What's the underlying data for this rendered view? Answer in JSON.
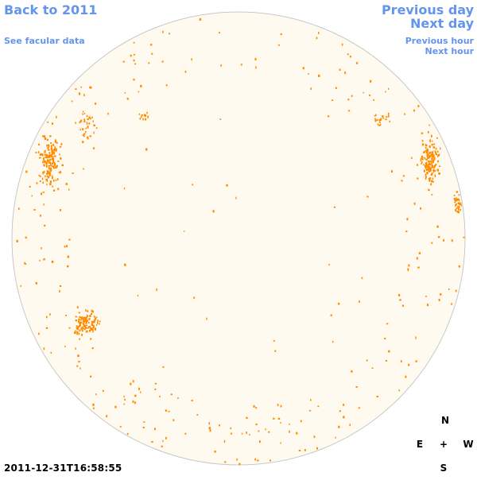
{
  "nav": {
    "back_label": "Back to 2011",
    "facular_label": "See facular data",
    "prev_day_label": "Previous day",
    "next_day_label": "Next day",
    "prev_hour_label": "Previous hour",
    "next_hour_label": "Next hour"
  },
  "timestamp": "2011-12-31T16:58:55",
  "compass": {
    "north": "N",
    "south": "S",
    "east": "E",
    "west": "W",
    "center": "+"
  },
  "colors": {
    "link": "#6495ed",
    "disk_fill": "#fffaf0",
    "disk_edge": "#c8c8c8",
    "plage": "#ff8c00"
  }
}
